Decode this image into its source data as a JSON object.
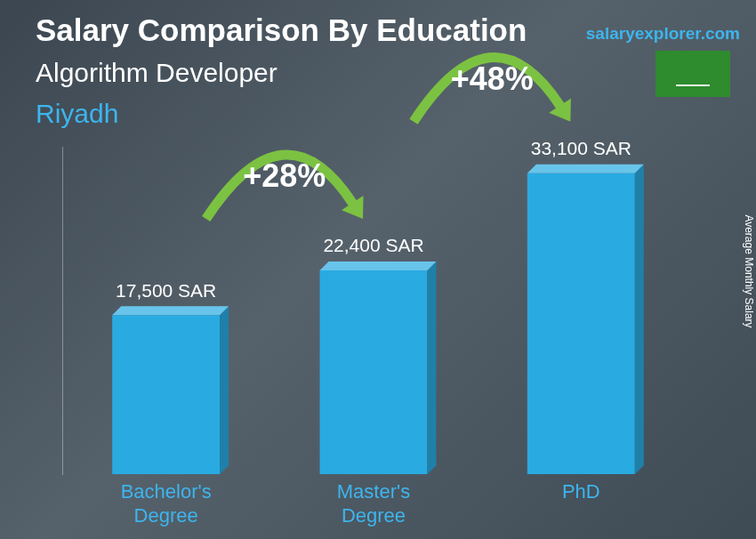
{
  "chart_data": {
    "type": "bar",
    "title": "Salary Comparison By Education",
    "subtitle": "Algorithm Developer",
    "location": "Riyadh",
    "source": "salaryexplorer.com",
    "ylabel": "Average Monthly Salary",
    "categories": [
      "Bachelor's Degree",
      "Master's Degree",
      "PhD"
    ],
    "values": [
      17500,
      22400,
      33100
    ],
    "value_labels": [
      "17,500 SAR",
      "22,400 SAR",
      "33,100 SAR"
    ],
    "data_labels": true,
    "color": "#29abe2",
    "ylim": [
      0,
      36000
    ],
    "grid": false,
    "tick_labels": "x",
    "annotations": [
      {
        "text": "+28%",
        "from": "Bachelor's Degree",
        "to": "Master's Degree"
      },
      {
        "text": "+48%",
        "from": "Master's Degree",
        "to": "PhD"
      }
    ]
  }
}
